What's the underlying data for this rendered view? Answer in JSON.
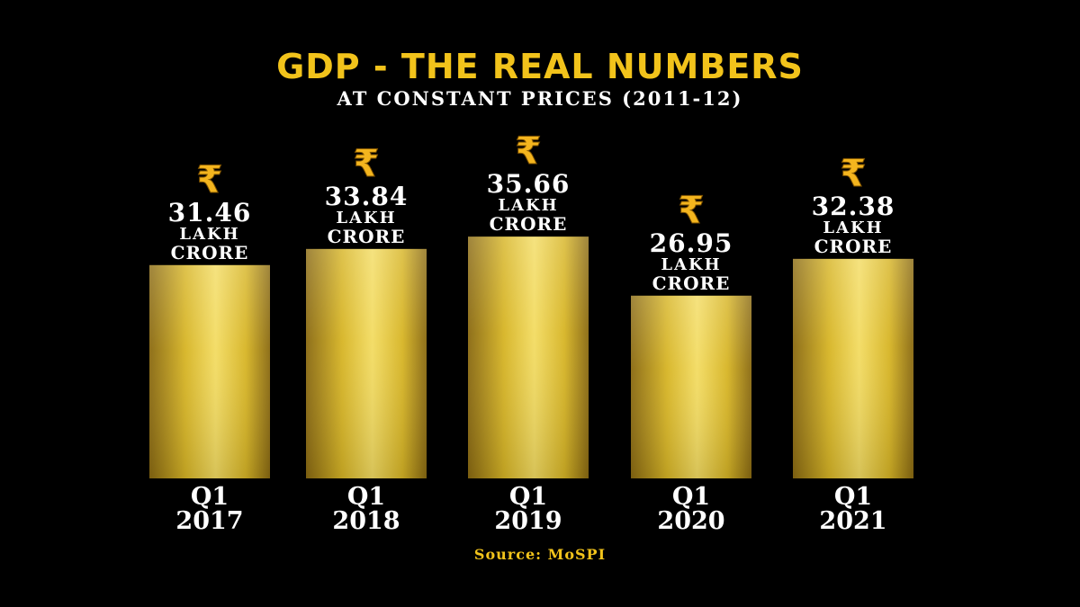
{
  "header": {
    "title": "GDP - THE REAL NUMBERS",
    "subtitle": "AT CONSTANT PRICES (2011-12)"
  },
  "footer": {
    "source": "Source: MoSPI"
  },
  "colors": {
    "background": "#000000",
    "title": "#f2c31b",
    "text": "#ffffff",
    "gold_light": "#f3dc63",
    "gold_mid": "#d7b526",
    "gold_dark": "#8a6a12",
    "rupee": "#f4b51e"
  },
  "icons": {
    "currency": "rupee-icon",
    "currency_glyph": "₹"
  },
  "chart_data": {
    "type": "bar",
    "title": "GDP - THE REAL NUMBERS",
    "subtitle": "AT CONSTANT PRICES (2011-12)",
    "categories": [
      "Q1 2017",
      "Q1 2018",
      "Q1 2019",
      "Q1 2020",
      "Q1 2021"
    ],
    "category_lines": [
      [
        "Q1",
        "2017"
      ],
      [
        "Q1",
        "2018"
      ],
      [
        "Q1",
        "2019"
      ],
      [
        "Q1",
        "2020"
      ],
      [
        "Q1",
        "2021"
      ]
    ],
    "values": [
      31.46,
      33.84,
      35.66,
      26.95,
      32.38
    ],
    "value_labels": [
      "31.46",
      "33.84",
      "35.66",
      "26.95",
      "32.38"
    ],
    "unit_lines": [
      "LAKH",
      "CRORE"
    ],
    "unit": "Lakh Crore (₹)",
    "xlabel": "",
    "ylabel": "",
    "ylim": [
      0,
      40
    ],
    "grid": false,
    "legend": "none"
  }
}
